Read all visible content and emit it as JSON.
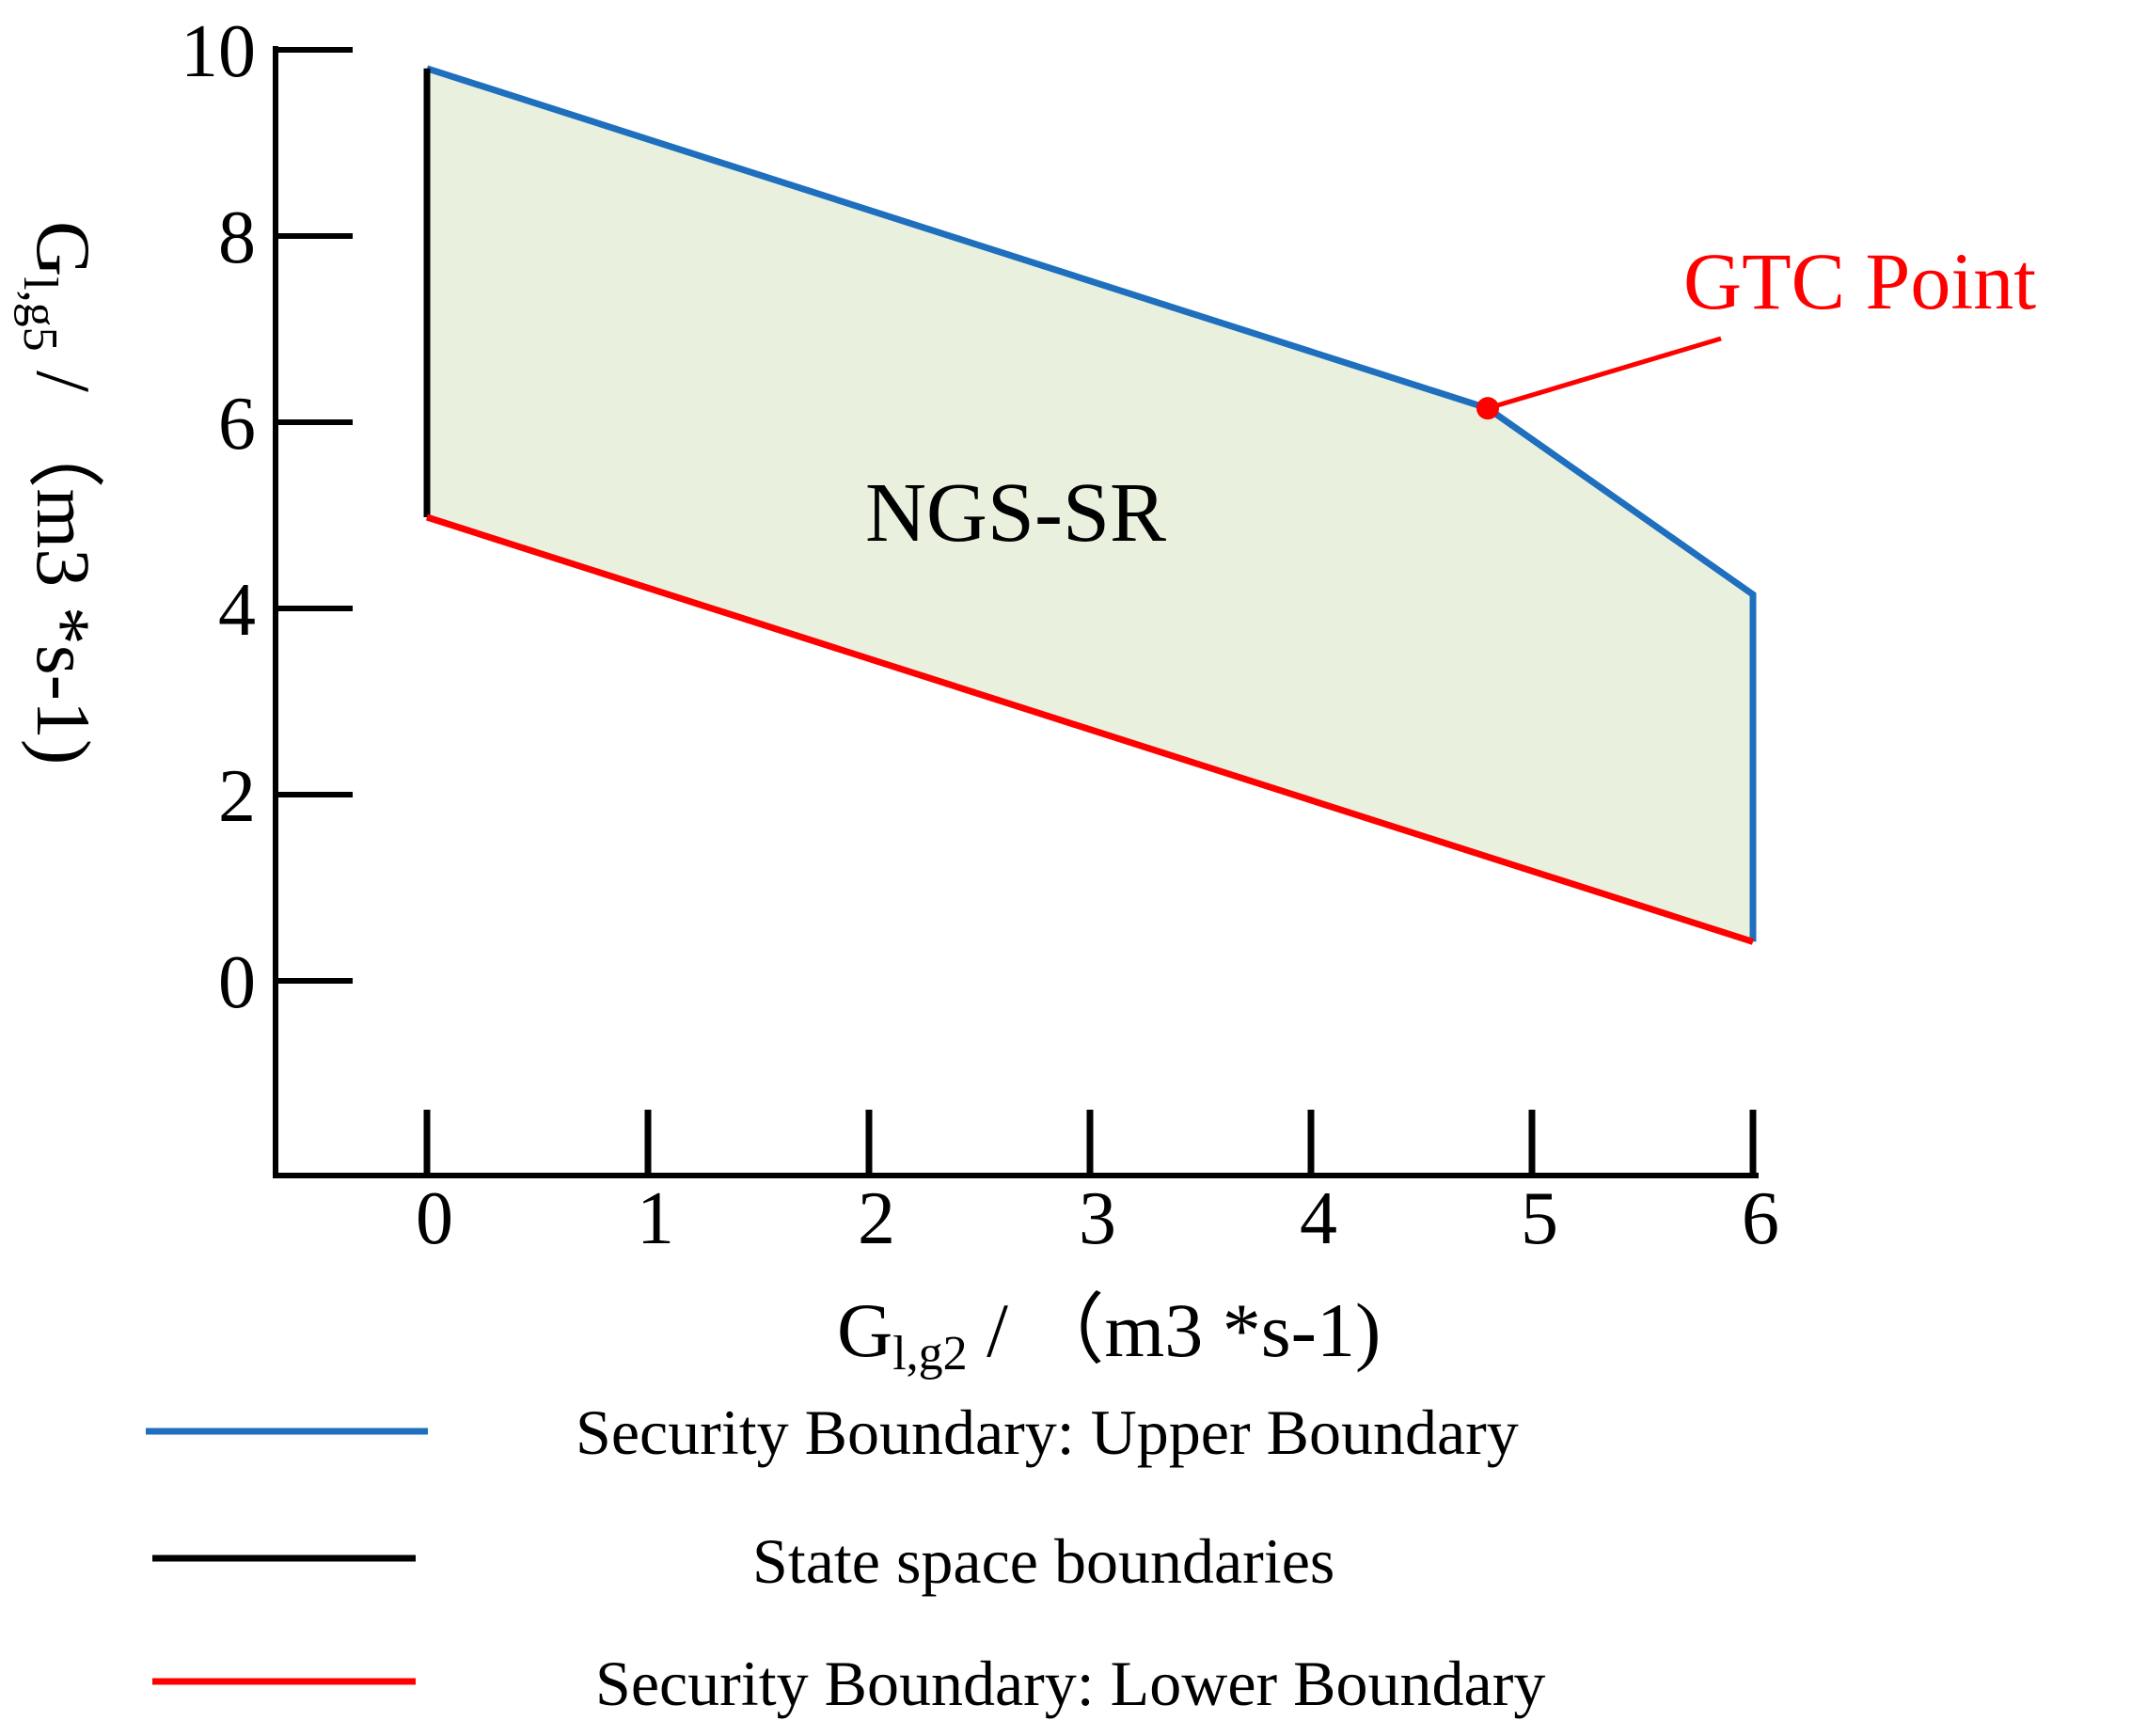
{
  "chart_data": {
    "type": "area",
    "title": "",
    "xlabel": {
      "main": "G",
      "sub": "l,g2",
      "unit": " / （m3 *s-1)"
    },
    "ylabel": {
      "main": "G",
      "sub": "l,g5",
      "unit": " / （m3 *s-1)"
    },
    "x_ticks": [
      0,
      1,
      2,
      3,
      4,
      5,
      6
    ],
    "y_ticks": [
      0,
      2,
      4,
      6,
      8,
      10
    ],
    "xlim": [
      -0.7,
      6
    ],
    "ylim": [
      -2.05,
      10
    ],
    "region": {
      "label": "NGS-SR",
      "fill_color": "#e9f0de",
      "polygon": [
        [
          0,
          9.8
        ],
        [
          4.8,
          6.15
        ],
        [
          6,
          4.15
        ],
        [
          6,
          0.42
        ],
        [
          0,
          4.98
        ]
      ]
    },
    "series": [
      {
        "name": "Security Boundary: Upper Boundary",
        "color": "#1f6fbf",
        "points": [
          [
            0,
            9.8
          ],
          [
            4.8,
            6.15
          ],
          [
            6,
            4.15
          ],
          [
            6,
            0.42
          ]
        ]
      },
      {
        "name": "State space boundaries",
        "color": "#000000",
        "points": [
          [
            0,
            4.98
          ],
          [
            0,
            9.8
          ]
        ]
      },
      {
        "name": "Security Boundary: Lower Boundary",
        "color": "#ff0000",
        "points": [
          [
            0,
            4.98
          ],
          [
            6,
            0.42
          ]
        ]
      }
    ],
    "annotation": {
      "label": "GTC Point",
      "point": [
        4.8,
        6.15
      ],
      "color": "#ff0000"
    }
  }
}
